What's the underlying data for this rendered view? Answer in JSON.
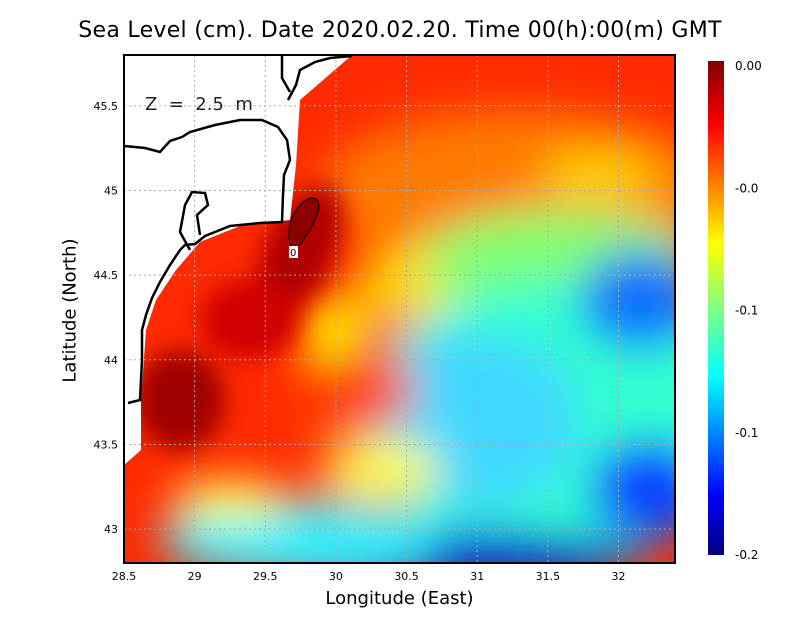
{
  "title": "Sea Level (cm). Date 2020.02.20. Time 00(h):00(m) GMT",
  "xlabel": "Longitude (East)",
  "ylabel": "Latitude (North)",
  "depth_label": "Z  =  2.5  m",
  "contour_label": "0",
  "chart_data": {
    "type": "heatmap",
    "title": "Sea Level (cm). Date 2020.02.20. Time 00(h):00(m) GMT",
    "xlabel": "Longitude (East)",
    "ylabel": "Latitude (North)",
    "xlim": [
      28.5,
      32.4
    ],
    "ylim": [
      42.8,
      45.8
    ],
    "xticks": [
      "28.5",
      "29",
      "29.5",
      "30",
      "30.5",
      "31",
      "31.5",
      "32"
    ],
    "yticks": [
      "43",
      "43.5",
      "44",
      "44.5",
      "45",
      "45.5"
    ],
    "grid": true,
    "colorbar": {
      "ticks": [
        "0.00",
        "-0.0",
        "-0.1",
        "-0.1",
        "-0.2"
      ],
      "range": [
        -0.2,
        0.0
      ],
      "colormap": "jet"
    },
    "contours": [
      {
        "level": "0"
      }
    ]
  }
}
